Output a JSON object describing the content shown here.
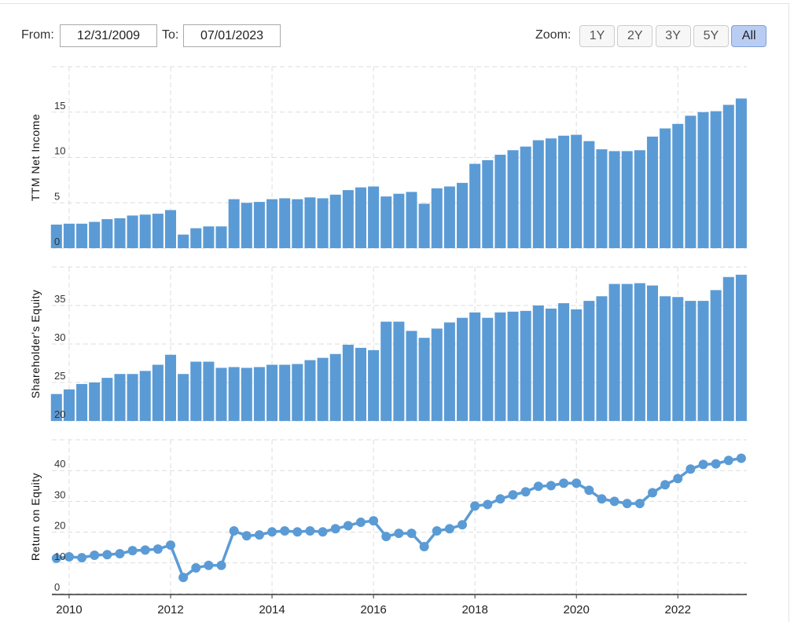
{
  "controls": {
    "from_label": "From:",
    "from_value": "12/31/2009",
    "to_label": "To:",
    "to_value": "07/01/2023",
    "zoom_label": "Zoom:",
    "zoom_options": [
      "1Y",
      "2Y",
      "3Y",
      "5Y",
      "All"
    ],
    "zoom_active": "All"
  },
  "chart_data": [
    {
      "type": "bar",
      "y_label": "TTM Net Income",
      "color": "#5b9bd5",
      "grid": true,
      "x": [
        2009.75,
        2010,
        2010.25,
        2010.5,
        2010.75,
        2011,
        2011.25,
        2011.5,
        2011.75,
        2012,
        2012.25,
        2012.5,
        2012.75,
        2013,
        2013.25,
        2013.5,
        2013.75,
        2014,
        2014.25,
        2014.5,
        2014.75,
        2015,
        2015.25,
        2015.5,
        2015.75,
        2016,
        2016.25,
        2016.5,
        2016.75,
        2017,
        2017.25,
        2017.5,
        2017.75,
        2018,
        2018.25,
        2018.5,
        2018.75,
        2019,
        2019.25,
        2019.5,
        2019.75,
        2020,
        2020.25,
        2020.5,
        2020.75,
        2021,
        2021.25,
        2021.5,
        2021.75,
        2022,
        2022.25,
        2022.5,
        2022.75,
        2023,
        2023.25
      ],
      "values": [
        2.6,
        2.7,
        2.7,
        2.9,
        3.2,
        3.3,
        3.6,
        3.7,
        3.8,
        4.2,
        1.5,
        2.2,
        2.4,
        2.4,
        5.4,
        5.0,
        5.1,
        5.4,
        5.5,
        5.4,
        5.6,
        5.5,
        5.9,
        6.4,
        6.7,
        6.8,
        5.7,
        6.0,
        6.2,
        4.9,
        6.6,
        6.8,
        7.2,
        9.3,
        9.7,
        10.3,
        10.8,
        11.2,
        11.9,
        12.1,
        12.4,
        12.5,
        11.8,
        10.9,
        10.7,
        10.7,
        10.8,
        12.3,
        13.2,
        13.7,
        14.6,
        15.0,
        15.1,
        15.8,
        16.5
      ],
      "xlim": [
        2009.66,
        2023.36
      ],
      "ylim": [
        0,
        20
      ],
      "yticks": [
        0,
        5,
        10,
        15
      ]
    },
    {
      "type": "bar",
      "y_label": "Shareholder's Equity",
      "color": "#5b9bd5",
      "grid": true,
      "x": [
        2009.75,
        2010,
        2010.25,
        2010.5,
        2010.75,
        2011,
        2011.25,
        2011.5,
        2011.75,
        2012,
        2012.25,
        2012.5,
        2012.75,
        2013,
        2013.25,
        2013.5,
        2013.75,
        2014,
        2014.25,
        2014.5,
        2014.75,
        2015,
        2015.25,
        2015.5,
        2015.75,
        2016,
        2016.25,
        2016.5,
        2016.75,
        2017,
        2017.25,
        2017.5,
        2017.75,
        2018,
        2018.25,
        2018.5,
        2018.75,
        2019,
        2019.25,
        2019.5,
        2019.75,
        2020,
        2020.25,
        2020.5,
        2020.75,
        2021,
        2021.25,
        2021.5,
        2021.75,
        2022,
        2022.25,
        2022.5,
        2022.75,
        2023,
        2023.25
      ],
      "values": [
        23.5,
        24.1,
        24.8,
        25.0,
        25.6,
        26.1,
        26.1,
        26.5,
        27.3,
        28.6,
        26.1,
        27.7,
        27.7,
        26.9,
        27.0,
        26.9,
        27.0,
        27.3,
        27.3,
        27.4,
        27.9,
        28.2,
        28.7,
        29.9,
        29.5,
        29.2,
        32.9,
        32.9,
        31.7,
        30.8,
        32.0,
        32.8,
        33.4,
        34.1,
        33.4,
        34.1,
        34.2,
        34.3,
        35.0,
        34.6,
        35.3,
        34.5,
        35.6,
        36.2,
        37.8,
        37.8,
        37.9,
        37.6,
        36.2,
        36.1,
        35.6,
        35.6,
        37.0,
        38.7,
        39.0
      ],
      "xlim": [
        2009.66,
        2023.36
      ],
      "ylim": [
        20,
        40
      ],
      "yticks": [
        20,
        25,
        30,
        35
      ]
    },
    {
      "type": "line",
      "y_label": "Return on Equity",
      "color": "#5b9bd5",
      "grid": true,
      "x": [
        2009.75,
        2010,
        2010.25,
        2010.5,
        2010.75,
        2011,
        2011.25,
        2011.5,
        2011.75,
        2012,
        2012.25,
        2012.5,
        2012.75,
        2013,
        2013.25,
        2013.5,
        2013.75,
        2014,
        2014.25,
        2014.5,
        2014.75,
        2015,
        2015.25,
        2015.5,
        2015.75,
        2016,
        2016.25,
        2016.5,
        2016.75,
        2017,
        2017.25,
        2017.5,
        2017.75,
        2018,
        2018.25,
        2018.5,
        2018.75,
        2019,
        2019.25,
        2019.5,
        2019.75,
        2020,
        2020.25,
        2020.5,
        2020.75,
        2021,
        2021.25,
        2021.5,
        2021.75,
        2022,
        2022.25,
        2022.5,
        2022.75,
        2023,
        2023.25
      ],
      "values": [
        11.5,
        12,
        11.7,
        12.5,
        12.7,
        13,
        14,
        14.2,
        14.5,
        15.8,
        5.3,
        8.4,
        9.2,
        9.2,
        20.4,
        18.8,
        19.1,
        20.1,
        20.4,
        20.1,
        20.4,
        20.1,
        21.1,
        22.1,
        23.2,
        23.7,
        18.6,
        19.6,
        19.6,
        15.3,
        20.4,
        21.1,
        22.4,
        28.5,
        29,
        30.8,
        32.1,
        33.1,
        34.9,
        35.1,
        35.9,
        35.9,
        33.6,
        30.8,
        30,
        29.3,
        29.3,
        32.8,
        35.4,
        37.4,
        40.5,
        42,
        42.2,
        43.3,
        44
      ],
      "xlim": [
        2009.66,
        2023.36
      ],
      "ylim": [
        0,
        50
      ],
      "yticks": [
        0,
        10,
        20,
        30,
        40
      ],
      "xticks": [
        2010,
        2012,
        2014,
        2016,
        2018,
        2020,
        2022
      ]
    }
  ]
}
